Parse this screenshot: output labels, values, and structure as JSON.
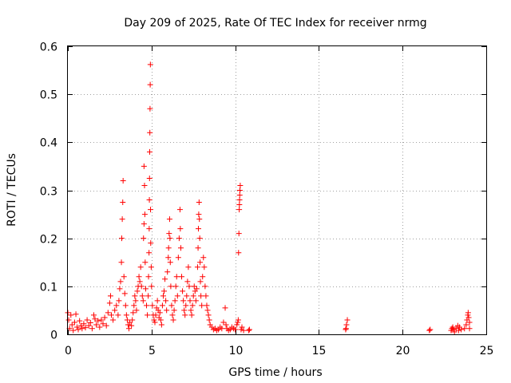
{
  "chart_data": {
    "type": "scatter",
    "title": "Day 209 of 2025, Rate Of TEC Index for receiver nrmg",
    "xlabel": "GPS time / hours",
    "ylabel": "ROTI / TECUs",
    "xlim": [
      0,
      25
    ],
    "ylim": [
      0,
      0.6
    ],
    "xticks": [
      "0",
      "5",
      "10",
      "15",
      "20",
      "25"
    ],
    "yticks": [
      "0",
      "0.1",
      "0.2",
      "0.3",
      "0.4",
      "0.5",
      "0.6"
    ],
    "grid": true,
    "marker": "+",
    "color": "#ff0000",
    "series": [
      {
        "name": "ROTI",
        "points": [
          [
            0.0,
            0.045
          ],
          [
            0.05,
            0.03
          ],
          [
            0.1,
            0.012
          ],
          [
            0.18,
            0.04
          ],
          [
            0.25,
            0.02
          ],
          [
            0.32,
            0.008
          ],
          [
            0.4,
            0.025
          ],
          [
            0.48,
            0.042
          ],
          [
            0.55,
            0.015
          ],
          [
            0.62,
            0.01
          ],
          [
            0.7,
            0.028
          ],
          [
            0.78,
            0.018
          ],
          [
            0.85,
            0.012
          ],
          [
            0.95,
            0.022
          ],
          [
            1.05,
            0.014
          ],
          [
            1.15,
            0.03
          ],
          [
            1.25,
            0.018
          ],
          [
            1.35,
            0.024
          ],
          [
            1.45,
            0.012
          ],
          [
            1.55,
            0.04
          ],
          [
            1.62,
            0.032
          ],
          [
            1.7,
            0.02
          ],
          [
            1.8,
            0.028
          ],
          [
            1.9,
            0.015
          ],
          [
            2.0,
            0.03
          ],
          [
            2.1,
            0.022
          ],
          [
            2.2,
            0.035
          ],
          [
            2.3,
            0.018
          ],
          [
            2.4,
            0.045
          ],
          [
            2.5,
            0.065
          ],
          [
            2.55,
            0.08
          ],
          [
            2.6,
            0.04
          ],
          [
            2.7,
            0.03
          ],
          [
            2.8,
            0.05
          ],
          [
            2.9,
            0.06
          ],
          [
            3.0,
            0.04
          ],
          [
            3.05,
            0.07
          ],
          [
            3.1,
            0.095
          ],
          [
            3.15,
            0.11
          ],
          [
            3.2,
            0.15
          ],
          [
            3.22,
            0.2
          ],
          [
            3.25,
            0.24
          ],
          [
            3.28,
            0.275
          ],
          [
            3.3,
            0.32
          ],
          [
            3.35,
            0.12
          ],
          [
            3.4,
            0.085
          ],
          [
            3.45,
            0.06
          ],
          [
            3.5,
            0.04
          ],
          [
            3.55,
            0.03
          ],
          [
            3.6,
            0.02
          ],
          [
            3.65,
            0.012
          ],
          [
            3.7,
            0.025
          ],
          [
            3.8,
            0.018
          ],
          [
            3.85,
            0.03
          ],
          [
            3.9,
            0.045
          ],
          [
            3.95,
            0.06
          ],
          [
            4.0,
            0.08
          ],
          [
            4.05,
            0.07
          ],
          [
            4.1,
            0.05
          ],
          [
            4.15,
            0.09
          ],
          [
            4.2,
            0.1
          ],
          [
            4.25,
            0.12
          ],
          [
            4.3,
            0.11
          ],
          [
            4.35,
            0.14
          ],
          [
            4.4,
            0.1
          ],
          [
            4.45,
            0.08
          ],
          [
            4.5,
            0.07
          ],
          [
            4.52,
            0.2
          ],
          [
            4.55,
            0.23
          ],
          [
            4.55,
            0.35
          ],
          [
            4.58,
            0.31
          ],
          [
            4.6,
            0.25
          ],
          [
            4.62,
            0.15
          ],
          [
            4.65,
            0.095
          ],
          [
            4.7,
            0.06
          ],
          [
            4.75,
            0.04
          ],
          [
            4.8,
            0.08
          ],
          [
            4.82,
            0.12
          ],
          [
            4.85,
            0.17
          ],
          [
            4.86,
            0.22
          ],
          [
            4.87,
            0.28
          ],
          [
            4.88,
            0.325
          ],
          [
            4.89,
            0.38
          ],
          [
            4.9,
            0.42
          ],
          [
            4.91,
            0.47
          ],
          [
            4.92,
            0.52
          ],
          [
            4.93,
            0.562
          ],
          [
            4.94,
            0.26
          ],
          [
            4.95,
            0.19
          ],
          [
            4.98,
            0.14
          ],
          [
            5.0,
            0.1
          ],
          [
            5.05,
            0.06
          ],
          [
            5.1,
            0.04
          ],
          [
            5.15,
            0.03
          ],
          [
            5.2,
            0.025
          ],
          [
            5.25,
            0.04
          ],
          [
            5.3,
            0.055
          ],
          [
            5.35,
            0.07
          ],
          [
            5.4,
            0.05
          ],
          [
            5.45,
            0.035
          ],
          [
            5.5,
            0.045
          ],
          [
            5.55,
            0.03
          ],
          [
            5.6,
            0.02
          ],
          [
            5.65,
            0.06
          ],
          [
            5.7,
            0.08
          ],
          [
            5.75,
            0.09
          ],
          [
            5.8,
            0.115
          ],
          [
            5.85,
            0.07
          ],
          [
            5.9,
            0.05
          ],
          [
            5.95,
            0.13
          ],
          [
            6.0,
            0.16
          ],
          [
            6.02,
            0.18
          ],
          [
            6.05,
            0.21
          ],
          [
            6.08,
            0.24
          ],
          [
            6.1,
            0.2
          ],
          [
            6.12,
            0.15
          ],
          [
            6.15,
            0.1
          ],
          [
            6.2,
            0.06
          ],
          [
            6.25,
            0.04
          ],
          [
            6.3,
            0.03
          ],
          [
            6.35,
            0.05
          ],
          [
            6.4,
            0.07
          ],
          [
            6.45,
            0.1
          ],
          [
            6.5,
            0.12
          ],
          [
            6.55,
            0.08
          ],
          [
            6.6,
            0.16
          ],
          [
            6.65,
            0.2
          ],
          [
            6.7,
            0.26
          ],
          [
            6.72,
            0.22
          ],
          [
            6.75,
            0.18
          ],
          [
            6.8,
            0.12
          ],
          [
            6.85,
            0.09
          ],
          [
            6.9,
            0.07
          ],
          [
            6.95,
            0.05
          ],
          [
            7.0,
            0.04
          ],
          [
            7.05,
            0.06
          ],
          [
            7.1,
            0.08
          ],
          [
            7.15,
            0.11
          ],
          [
            7.2,
            0.14
          ],
          [
            7.25,
            0.1
          ],
          [
            7.3,
            0.07
          ],
          [
            7.35,
            0.05
          ],
          [
            7.4,
            0.04
          ],
          [
            7.45,
            0.06
          ],
          [
            7.5,
            0.08
          ],
          [
            7.55,
            0.1
          ],
          [
            7.6,
            0.09
          ],
          [
            7.65,
            0.07
          ],
          [
            7.7,
            0.095
          ],
          [
            7.75,
            0.14
          ],
          [
            7.78,
            0.18
          ],
          [
            7.8,
            0.22
          ],
          [
            7.82,
            0.25
          ],
          [
            7.84,
            0.275
          ],
          [
            7.86,
            0.24
          ],
          [
            7.88,
            0.2
          ],
          [
            7.9,
            0.15
          ],
          [
            7.92,
            0.11
          ],
          [
            7.95,
            0.08
          ],
          [
            8.0,
            0.06
          ],
          [
            8.05,
            0.12
          ],
          [
            8.1,
            0.16
          ],
          [
            8.15,
            0.14
          ],
          [
            8.2,
            0.1
          ],
          [
            8.25,
            0.08
          ],
          [
            8.3,
            0.06
          ],
          [
            8.35,
            0.05
          ],
          [
            8.4,
            0.04
          ],
          [
            8.45,
            0.03
          ],
          [
            8.5,
            0.02
          ],
          [
            8.6,
            0.015
          ],
          [
            8.7,
            0.01
          ],
          [
            8.8,
            0.012
          ],
          [
            8.9,
            0.008
          ],
          [
            9.0,
            0.01
          ],
          [
            9.1,
            0.015
          ],
          [
            9.2,
            0.012
          ],
          [
            9.3,
            0.025
          ],
          [
            9.4,
            0.055
          ],
          [
            9.45,
            0.02
          ],
          [
            9.5,
            0.012
          ],
          [
            9.6,
            0.008
          ],
          [
            9.7,
            0.01
          ],
          [
            9.8,
            0.015
          ],
          [
            9.9,
            0.012
          ],
          [
            10.0,
            0.01
          ],
          [
            10.1,
            0.02
          ],
          [
            10.15,
            0.025
          ],
          [
            10.18,
            0.03
          ],
          [
            10.2,
            0.17
          ],
          [
            10.22,
            0.21
          ],
          [
            10.24,
            0.26
          ],
          [
            10.25,
            0.27
          ],
          [
            10.26,
            0.28
          ],
          [
            10.27,
            0.29
          ],
          [
            10.28,
            0.3
          ],
          [
            10.3,
            0.31
          ],
          [
            10.35,
            0.01
          ],
          [
            10.4,
            0.015
          ],
          [
            10.5,
            0.008
          ],
          [
            10.8,
            0.008
          ],
          [
            10.85,
            0.01
          ],
          [
            16.6,
            0.01
          ],
          [
            16.62,
            0.012
          ],
          [
            16.65,
            0.02
          ],
          [
            16.7,
            0.03
          ],
          [
            21.6,
            0.008
          ],
          [
            21.65,
            0.01
          ],
          [
            22.9,
            0.008
          ],
          [
            22.95,
            0.012
          ],
          [
            23.0,
            0.015
          ],
          [
            23.05,
            0.01
          ],
          [
            23.1,
            0.005
          ],
          [
            23.2,
            0.012
          ],
          [
            23.3,
            0.018
          ],
          [
            23.35,
            0.008
          ],
          [
            23.4,
            0.015
          ],
          [
            23.5,
            0.01
          ],
          [
            23.7,
            0.012
          ],
          [
            23.8,
            0.02
          ],
          [
            23.85,
            0.03
          ],
          [
            23.9,
            0.04
          ],
          [
            23.92,
            0.045
          ],
          [
            23.95,
            0.035
          ],
          [
            24.0,
            0.025
          ],
          [
            24.0,
            0.012
          ]
        ]
      }
    ]
  }
}
